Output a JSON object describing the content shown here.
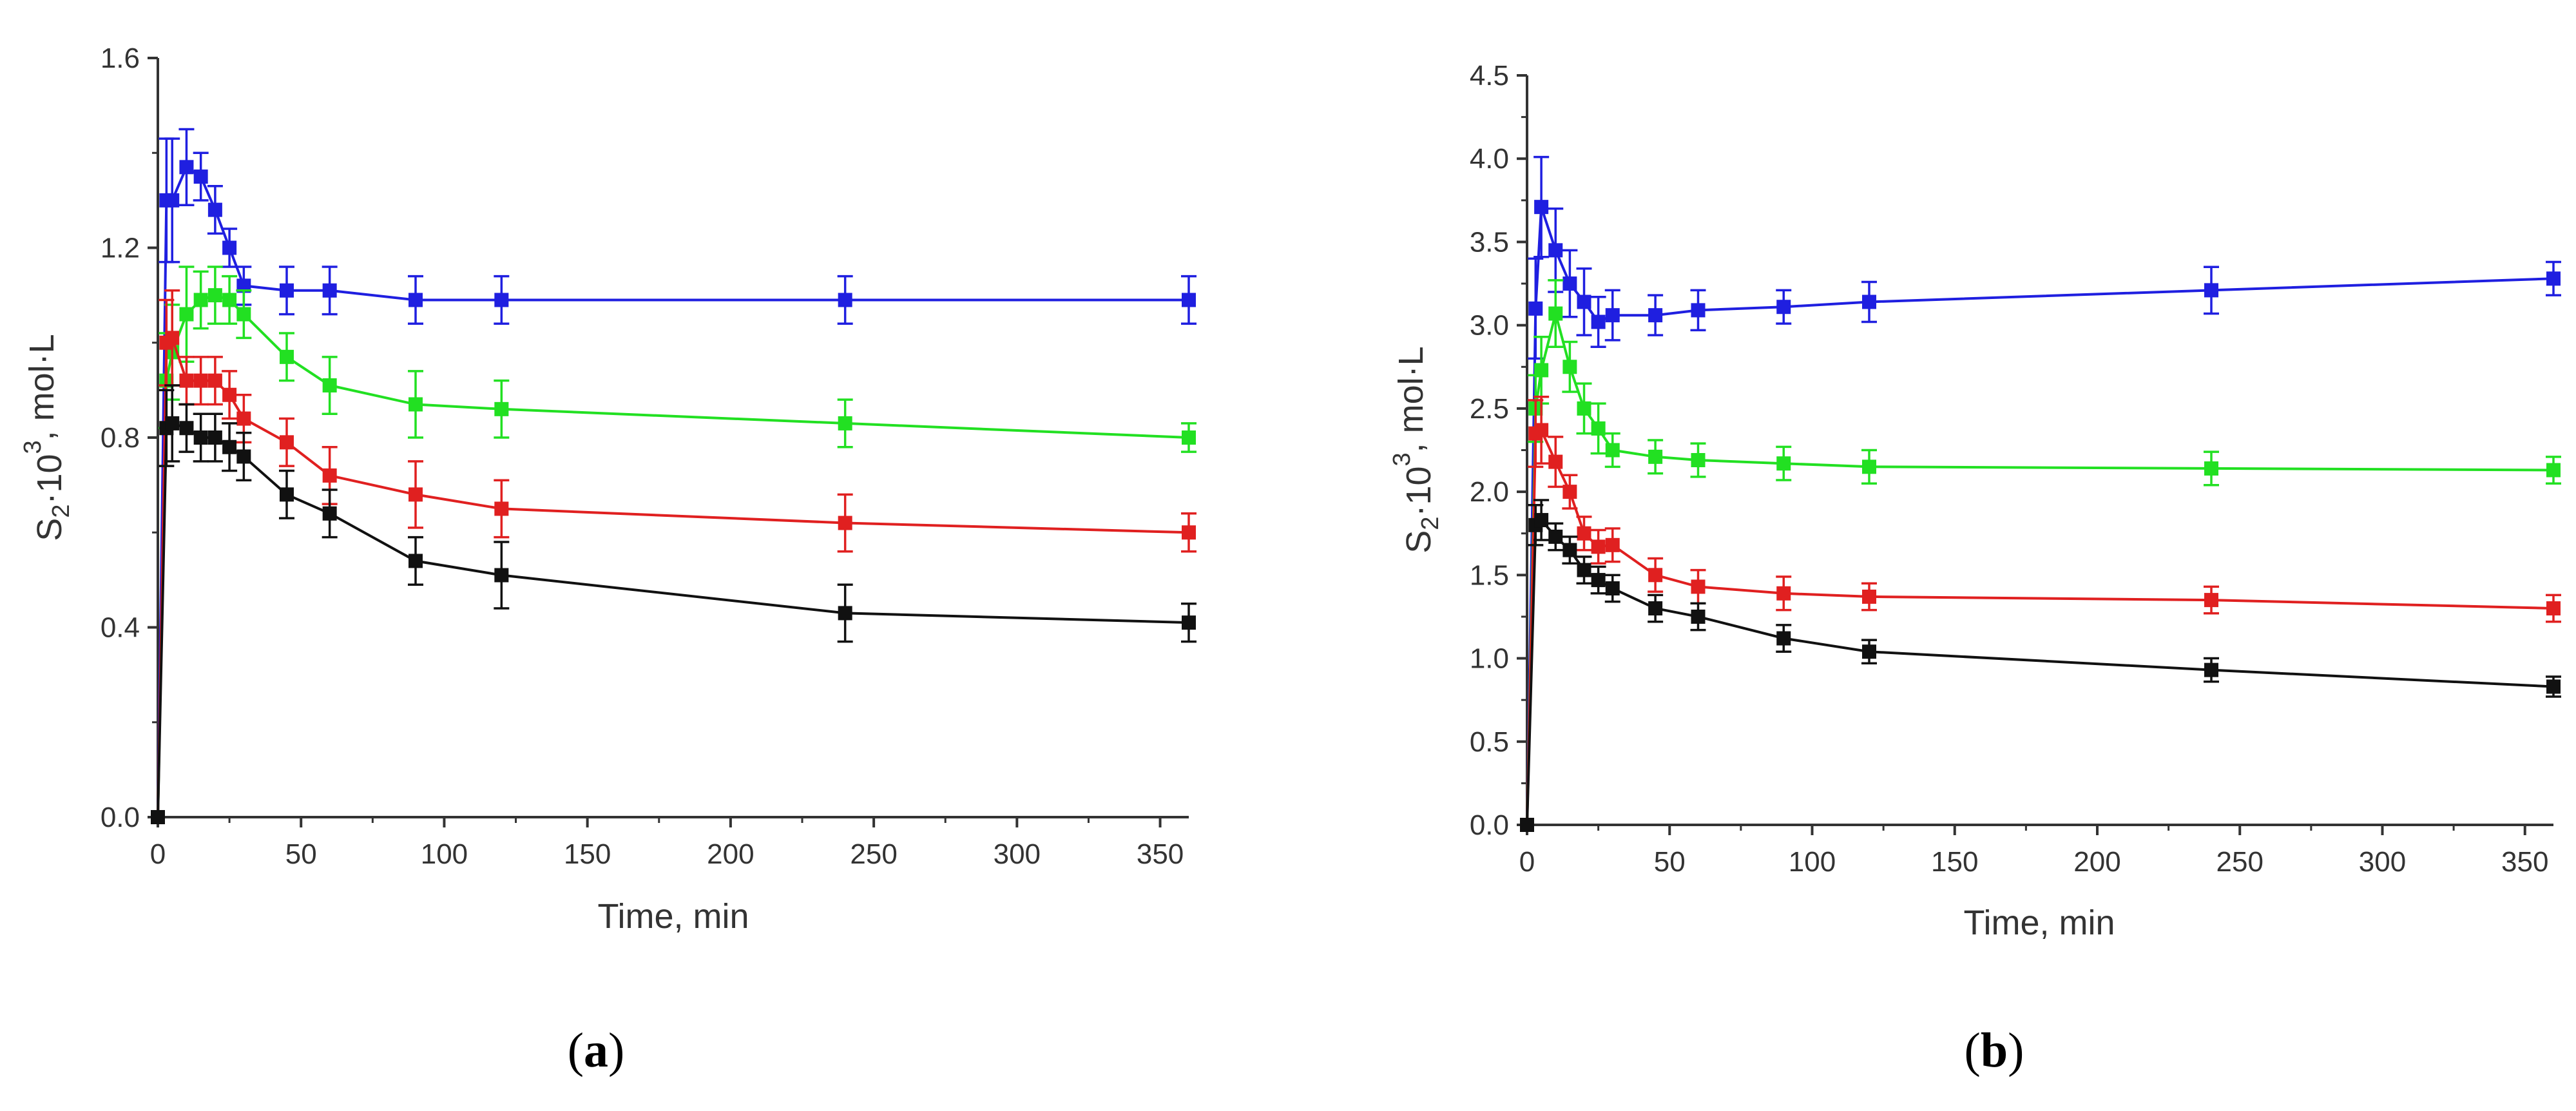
{
  "chart_data": [
    {
      "type": "line",
      "panel_label": "a",
      "xlabel": "Time, min",
      "ylabel_main": "S",
      "ylabel_sub": "2",
      "ylabel_mid": "·10",
      "ylabel_sup": "3",
      "ylabel_unit": ", mol·L",
      "xlim": [
        0,
        360
      ],
      "ylim": [
        0,
        1.6
      ],
      "xticks": [
        0,
        50,
        100,
        150,
        200,
        250,
        300,
        350
      ],
      "xtick_labels": [
        "0",
        "50",
        "100",
        "150",
        "200",
        "250",
        "300",
        "350"
      ],
      "yticks": [
        0,
        0.4,
        0.8,
        1.2,
        1.6
      ],
      "ytick_labels": [
        "0.0",
        "0.4",
        "0.8",
        "1.2",
        "1.6"
      ],
      "x": [
        0,
        3,
        5,
        10,
        15,
        20,
        25,
        30,
        45,
        60,
        90,
        120,
        240,
        360
      ],
      "series": [
        {
          "name": "blue",
          "color": "#1f1fe0",
          "values": [
            0,
            1.3,
            1.3,
            1.37,
            1.35,
            1.28,
            1.2,
            1.12,
            1.11,
            1.11,
            1.09,
            1.09,
            1.09,
            1.09
          ],
          "errors": [
            0,
            0.13,
            0.13,
            0.08,
            0.05,
            0.05,
            0.04,
            0.04,
            0.05,
            0.05,
            0.05,
            0.05,
            0.05,
            0.05
          ]
        },
        {
          "name": "green",
          "color": "#22e022",
          "values": [
            0,
            0.92,
            0.98,
            1.06,
            1.09,
            1.1,
            1.09,
            1.06,
            0.97,
            0.91,
            0.87,
            0.86,
            0.83,
            0.8
          ],
          "errors": [
            0,
            0.1,
            0.1,
            0.1,
            0.06,
            0.06,
            0.05,
            0.05,
            0.05,
            0.06,
            0.07,
            0.06,
            0.05,
            0.03
          ]
        },
        {
          "name": "red",
          "color": "#e02020",
          "values": [
            0,
            1.0,
            1.01,
            0.92,
            0.92,
            0.92,
            0.89,
            0.84,
            0.79,
            0.72,
            0.68,
            0.65,
            0.62,
            0.6
          ],
          "errors": [
            0,
            0.09,
            0.1,
            0.05,
            0.05,
            0.05,
            0.05,
            0.05,
            0.05,
            0.06,
            0.07,
            0.06,
            0.06,
            0.04
          ]
        },
        {
          "name": "black",
          "color": "#111111",
          "values": [
            0,
            0.82,
            0.83,
            0.82,
            0.8,
            0.8,
            0.78,
            0.76,
            0.68,
            0.64,
            0.54,
            0.51,
            0.43,
            0.41
          ],
          "errors": [
            0,
            0.08,
            0.08,
            0.05,
            0.05,
            0.05,
            0.05,
            0.05,
            0.05,
            0.05,
            0.05,
            0.07,
            0.06,
            0.04
          ]
        }
      ]
    },
    {
      "type": "line",
      "panel_label": "b",
      "xlabel": "Time, min",
      "ylabel_main": "S",
      "ylabel_sub": "2",
      "ylabel_mid": "·10",
      "ylabel_sup": "3",
      "ylabel_unit": ", mol·L",
      "xlim": [
        0,
        360
      ],
      "ylim": [
        0,
        4.5
      ],
      "xticks": [
        0,
        50,
        100,
        150,
        200,
        250,
        300,
        350
      ],
      "xtick_labels": [
        "0",
        "50",
        "100",
        "150",
        "200",
        "250",
        "300",
        "350"
      ],
      "yticks": [
        0,
        0.5,
        1.0,
        1.5,
        2.0,
        2.5,
        3.0,
        3.5,
        4.0,
        4.5
      ],
      "ytick_labels": [
        "0.0",
        "0.5",
        "1.0",
        "1.5",
        "2.0",
        "2.5",
        "3.0",
        "3.5",
        "4.0",
        "4.5"
      ],
      "x": [
        0,
        3,
        5,
        10,
        15,
        20,
        25,
        30,
        45,
        60,
        90,
        120,
        240,
        360
      ],
      "series": [
        {
          "name": "blue",
          "color": "#1f1fe0",
          "values": [
            0,
            3.1,
            3.71,
            3.45,
            3.25,
            3.14,
            3.02,
            3.06,
            3.06,
            3.09,
            3.11,
            3.14,
            3.21,
            3.28
          ],
          "errors": [
            0,
            0.3,
            0.3,
            0.25,
            0.2,
            0.2,
            0.15,
            0.15,
            0.12,
            0.12,
            0.1,
            0.12,
            0.14,
            0.1
          ]
        },
        {
          "name": "green",
          "color": "#22e022",
          "values": [
            0,
            2.5,
            2.73,
            3.07,
            2.75,
            2.5,
            2.38,
            2.25,
            2.21,
            2.19,
            2.17,
            2.15,
            2.14,
            2.13
          ],
          "errors": [
            0,
            0.2,
            0.2,
            0.2,
            0.15,
            0.15,
            0.15,
            0.1,
            0.1,
            0.1,
            0.1,
            0.1,
            0.1,
            0.08
          ]
        },
        {
          "name": "red",
          "color": "#e02020",
          "values": [
            0,
            2.35,
            2.37,
            2.18,
            2.0,
            1.75,
            1.67,
            1.68,
            1.5,
            1.43,
            1.39,
            1.37,
            1.35,
            1.3
          ],
          "errors": [
            0,
            0.2,
            0.2,
            0.15,
            0.1,
            0.1,
            0.1,
            0.1,
            0.1,
            0.1,
            0.1,
            0.08,
            0.08,
            0.08
          ]
        },
        {
          "name": "black",
          "color": "#111111",
          "values": [
            0,
            1.8,
            1.83,
            1.73,
            1.65,
            1.53,
            1.47,
            1.42,
            1.3,
            1.25,
            1.12,
            1.04,
            0.93,
            0.83
          ],
          "errors": [
            0,
            0.12,
            0.12,
            0.08,
            0.08,
            0.08,
            0.08,
            0.08,
            0.08,
            0.08,
            0.08,
            0.07,
            0.07,
            0.06
          ]
        }
      ]
    }
  ]
}
